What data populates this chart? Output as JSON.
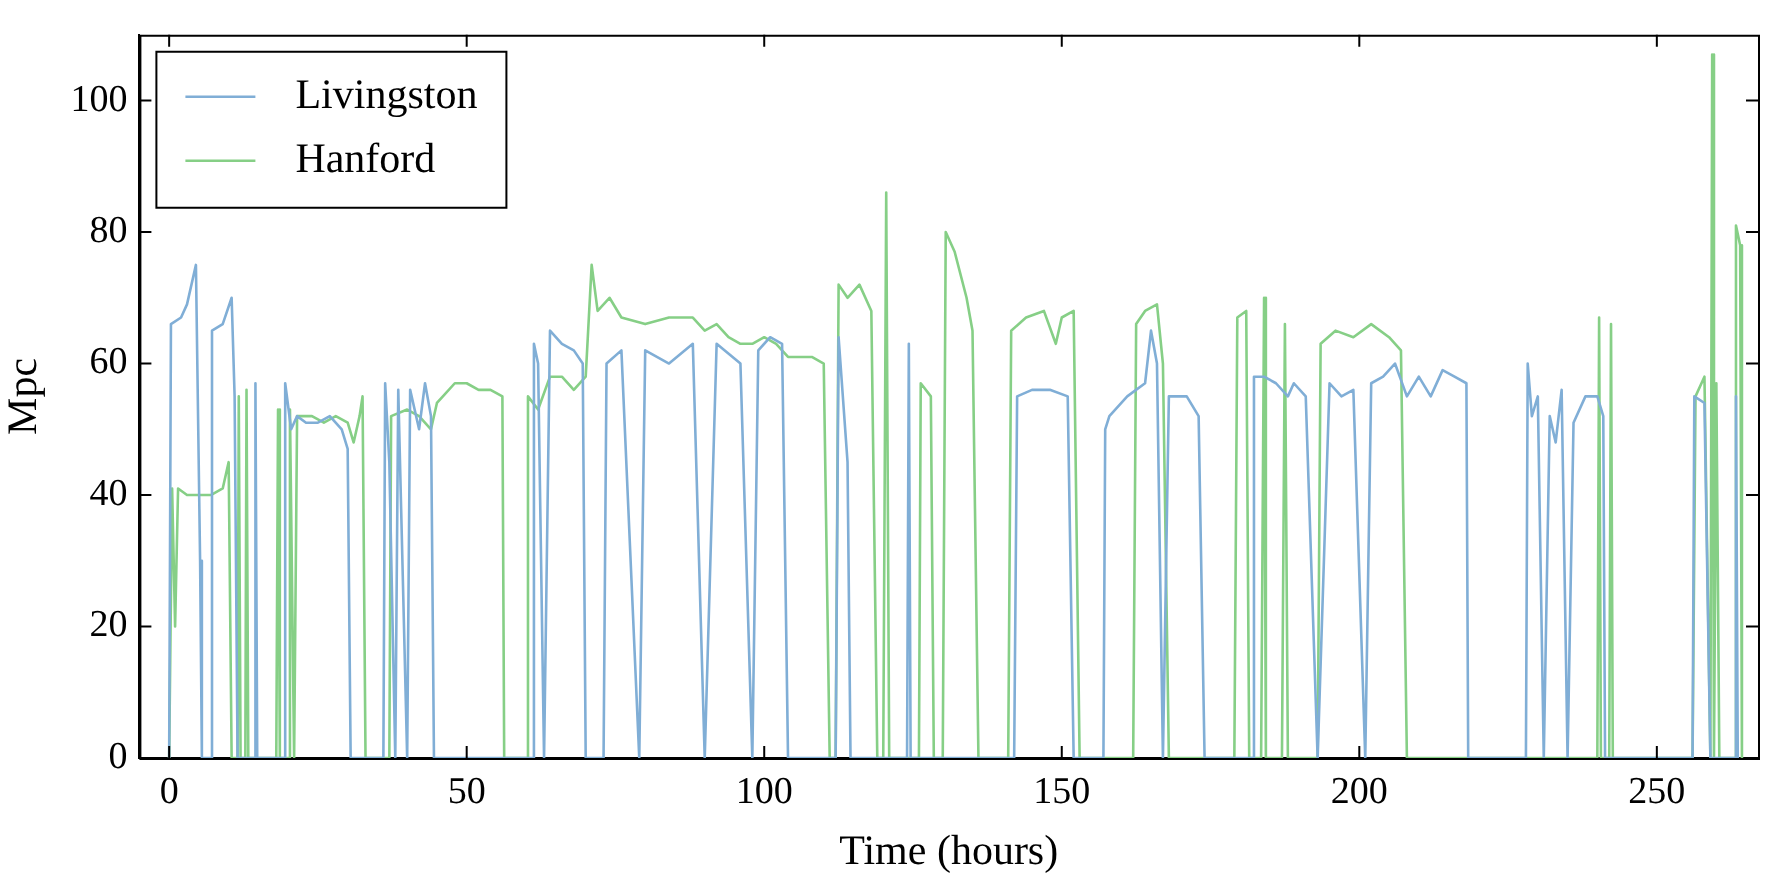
{
  "chart_data": {
    "type": "line",
    "xlabel": "Time (hours)",
    "ylabel": "Mpc",
    "xlim": [
      -5,
      267
    ],
    "ylim": [
      0,
      110
    ],
    "xticks": [
      0,
      50,
      100,
      150,
      200,
      250
    ],
    "yticks": [
      0,
      20,
      40,
      60,
      80,
      100
    ],
    "grid": false,
    "legend": "top left",
    "marker": "none",
    "line_style": "solid",
    "series": [
      {
        "name": "Livingston",
        "color": "#80aed6",
        "x": [
          0,
          0.3,
          2,
          3,
          4.5,
          5.2,
          5.5,
          7,
          7.2,
          9,
          10.5,
          11,
          11.5,
          14.3,
          14.5,
          14.8,
          19.3,
          19.5,
          20.5,
          21.5,
          23,
          25,
          27,
          29,
          30,
          30.5,
          36,
          36.3,
          37,
          38,
          38.5,
          40,
          40.5,
          42,
          43,
          44,
          44.5,
          61,
          61.3,
          62,
          63,
          64,
          66,
          68,
          69.5,
          70,
          73,
          73.5,
          76,
          79,
          80,
          84,
          88,
          90,
          92,
          96,
          98,
          99,
          101,
          103,
          104,
          112,
          112.5,
          114,
          114.5,
          124,
          124.3,
          124.6,
          142,
          142.5,
          145,
          148,
          151,
          152,
          157,
          157.3,
          158,
          161,
          164,
          165,
          166,
          167,
          168,
          171,
          173,
          174,
          182,
          182.3,
          184,
          186,
          188,
          189,
          191,
          193,
          195,
          197,
          199,
          201,
          202,
          204,
          206,
          208,
          210,
          212,
          214,
          216,
          218,
          218.3,
          228,
          228.3,
          229,
          230,
          231,
          232,
          233,
          234,
          235,
          236,
          238,
          240,
          241,
          241.3,
          256,
          256.3,
          258,
          259,
          263,
          263.3,
          263.6
        ],
        "values": [
          0,
          66,
          67,
          69,
          75,
          30,
          0,
          0,
          65,
          66,
          70,
          55,
          0,
          0,
          57,
          0,
          0,
          57,
          50,
          52,
          51,
          51,
          52,
          50,
          47,
          0,
          0,
          57,
          45,
          0,
          56,
          0,
          56,
          50,
          57,
          52,
          0,
          0,
          63,
          60,
          0,
          65,
          63,
          62,
          60,
          0,
          0,
          60,
          62,
          0,
          62,
          60,
          63,
          0,
          63,
          60,
          0,
          62,
          64,
          63,
          0,
          0,
          64,
          45,
          0,
          0,
          63,
          0,
          0,
          55,
          56,
          56,
          55,
          0,
          0,
          50,
          52,
          55,
          57,
          65,
          60,
          0,
          55,
          55,
          52,
          0,
          0,
          58,
          58,
          57,
          55,
          57,
          55,
          0,
          57,
          55,
          56,
          0,
          57,
          58,
          60,
          55,
          58,
          55,
          59,
          58,
          57,
          0,
          0,
          60,
          52,
          55,
          0,
          52,
          48,
          56,
          0,
          51,
          55,
          55,
          52,
          0,
          0,
          55,
          54,
          0,
          0,
          55,
          0
        ]
      },
      {
        "name": "Hanford",
        "color": "#86cf86",
        "x": [
          0,
          0.5,
          1,
          1.5,
          3,
          5,
          7,
          9,
          10,
          10.5,
          11.5,
          11.7,
          12,
          12.8,
          13,
          13.3,
          18,
          18.3,
          18.6,
          20,
          20.3,
          21,
          21.5,
          24,
          26,
          28,
          30,
          31,
          32,
          32.5,
          33,
          37,
          37.3,
          40,
          42,
          44,
          45,
          46,
          48,
          50,
          52,
          54,
          56,
          56.3,
          60,
          60.3,
          62,
          64,
          66,
          68,
          70,
          71,
          72,
          74,
          76,
          80,
          84,
          88,
          90,
          92,
          94,
          96,
          98,
          100,
          102,
          104,
          106,
          108,
          110,
          111,
          112,
          112.5,
          114,
          116,
          118,
          119,
          120,
          120.5,
          121,
          126,
          126.3,
          128,
          128.5,
          130,
          130.5,
          132,
          134,
          135,
          136,
          141,
          141.5,
          144,
          147,
          149,
          150,
          152,
          153,
          162,
          162.5,
          164,
          166,
          167,
          168,
          179,
          179.5,
          181,
          181.5,
          183.5,
          184,
          184.3,
          187,
          187.5,
          188,
          193,
          193.5,
          196,
          199,
          202,
          205,
          207,
          208,
          240,
          240.3,
          240.6,
          242,
          242.3,
          242.6,
          256,
          256.5,
          258,
          259,
          259.3,
          259.6,
          260,
          260.5,
          263,
          263.3,
          264,
          264.3
        ],
        "values": [
          0,
          41,
          20,
          41,
          40,
          40,
          40,
          41,
          45,
          0,
          0,
          55,
          0,
          0,
          56,
          0,
          0,
          53,
          0,
          0,
          53,
          0,
          52,
          52,
          51,
          52,
          51,
          48,
          52,
          55,
          0,
          0,
          52,
          53,
          52,
          50,
          54,
          55,
          57,
          57,
          56,
          56,
          55,
          0,
          0,
          55,
          53,
          58,
          58,
          56,
          58,
          75,
          68,
          70,
          67,
          66,
          67,
          67,
          65,
          66,
          64,
          63,
          63,
          64,
          63,
          61,
          61,
          61,
          60,
          0,
          0,
          72,
          70,
          72,
          68,
          0,
          0,
          86,
          0,
          0,
          57,
          55,
          0,
          0,
          80,
          77,
          70,
          65,
          0,
          0,
          65,
          67,
          68,
          63,
          67,
          68,
          0,
          0,
          66,
          68,
          69,
          60,
          0,
          0,
          67,
          68,
          0,
          0,
          70,
          0,
          0,
          66,
          0,
          0,
          63,
          65,
          64,
          66,
          64,
          62,
          0,
          0,
          67,
          0,
          0,
          66,
          0,
          0,
          55,
          58,
          0,
          107,
          0,
          57,
          0,
          0,
          81,
          78,
          0
        ]
      }
    ]
  }
}
